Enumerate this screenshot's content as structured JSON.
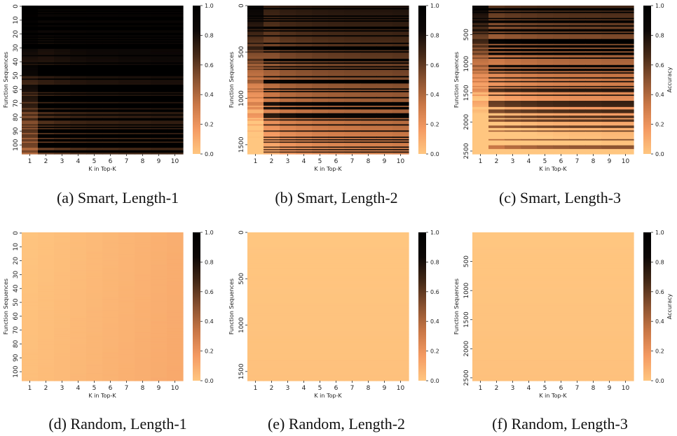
{
  "palette": {
    "low": "#ffc680",
    "high": "#000000",
    "stops": [
      "#ffc680",
      "#f49a62",
      "#c97746",
      "#8a5230",
      "#452917",
      "#0d0806",
      "#000000"
    ]
  },
  "chart_data": [
    {
      "type": "heatmap",
      "caption": "(a) Smart, Length-1",
      "xlabel": "K in Top-K",
      "ylabel": "Function Sequences",
      "x_categories": [
        "1",
        "2",
        "3",
        "4",
        "5",
        "6",
        "7",
        "8",
        "9",
        "10"
      ],
      "y_ticks": [
        "0",
        "10",
        "20",
        "30",
        "40",
        "50",
        "60",
        "70",
        "80",
        "90",
        "100"
      ],
      "y_range": [
        0,
        107
      ],
      "n_rows": 107,
      "colorbar": {
        "ticks": [
          "0.0",
          "0.2",
          "0.4",
          "0.6",
          "0.8",
          "1.0"
        ],
        "label": "",
        "range": [
          0,
          1
        ]
      },
      "column_mean_accuracy": [
        0.74,
        0.88,
        0.9,
        0.92,
        0.93,
        0.93,
        0.94,
        0.94,
        0.95,
        0.95
      ]
    },
    {
      "type": "heatmap",
      "caption": "(b) Smart, Length-2",
      "xlabel": "K in Top-K",
      "ylabel": "Function Sequences",
      "x_categories": [
        "1",
        "2",
        "3",
        "4",
        "5",
        "6",
        "7",
        "8",
        "9",
        "10"
      ],
      "y_ticks": [
        "0",
        "500",
        "1000",
        "1500"
      ],
      "y_range": [
        0,
        1600
      ],
      "n_rows": 1600,
      "colorbar": {
        "ticks": [
          "0.0",
          "0.2",
          "0.4",
          "0.6",
          "0.8",
          "1.0"
        ],
        "label": "",
        "range": [
          0,
          1
        ]
      },
      "column_mean_accuracy": [
        0.36,
        0.55,
        0.6,
        0.62,
        0.64,
        0.65,
        0.66,
        0.67,
        0.67,
        0.68
      ]
    },
    {
      "type": "heatmap",
      "caption": "(c) Smart, Length-3",
      "xlabel": "K in Top-K",
      "ylabel": "Function Sequences",
      "x_categories": [
        "1",
        "2",
        "3",
        "4",
        "5",
        "6",
        "7",
        "8",
        "9",
        "10"
      ],
      "y_ticks": [
        "500",
        "1000",
        "1500",
        "2000",
        "2500"
      ],
      "y_tick_values": [
        500,
        1000,
        1500,
        2000,
        2500
      ],
      "y_range": [
        0,
        2550
      ],
      "n_rows": 2550,
      "colorbar": {
        "ticks": [
          "0.0",
          "0.2",
          "0.4",
          "0.6",
          "0.8",
          "1.0"
        ],
        "label": "Accuracy",
        "range": [
          0,
          1
        ]
      },
      "column_mean_accuracy": [
        0.22,
        0.36,
        0.4,
        0.42,
        0.44,
        0.45,
        0.46,
        0.46,
        0.47,
        0.47
      ]
    },
    {
      "type": "heatmap",
      "caption": "(d) Random, Length-1",
      "xlabel": "K in Top-K",
      "ylabel": "Function Sequences",
      "x_categories": [
        "1",
        "2",
        "3",
        "4",
        "5",
        "6",
        "7",
        "8",
        "9",
        "10"
      ],
      "y_ticks": [
        "0",
        "10",
        "20",
        "30",
        "40",
        "50",
        "60",
        "70",
        "80",
        "90",
        "100"
      ],
      "y_range": [
        0,
        107
      ],
      "n_rows": 107,
      "colorbar": {
        "ticks": [
          "0.0",
          "0.2",
          "0.4",
          "0.6",
          "0.8",
          "1.0"
        ],
        "label": "",
        "range": [
          0,
          1
        ]
      },
      "column_mean_accuracy": [
        0.01,
        0.02,
        0.03,
        0.04,
        0.05,
        0.06,
        0.07,
        0.08,
        0.09,
        0.1
      ]
    },
    {
      "type": "heatmap",
      "caption": "(e) Random, Length-2",
      "xlabel": "K in Top-K",
      "ylabel": "Function Sequences",
      "x_categories": [
        "1",
        "2",
        "3",
        "4",
        "5",
        "6",
        "7",
        "8",
        "9",
        "10"
      ],
      "y_ticks": [
        "0",
        "500",
        "1000",
        "1500"
      ],
      "y_range": [
        0,
        1600
      ],
      "n_rows": 1600,
      "colorbar": {
        "ticks": [
          "0.0",
          "0.2",
          "0.4",
          "0.6",
          "0.8",
          "1.0"
        ],
        "label": "",
        "range": [
          0,
          1
        ]
      },
      "column_mean_accuracy": [
        0.0,
        0.0,
        0.0,
        0.0,
        0.0,
        0.0,
        0.0,
        0.0,
        0.0,
        0.0
      ]
    },
    {
      "type": "heatmap",
      "caption": "(f) Random, Length-3",
      "xlabel": "K in Top-K",
      "ylabel": "Function Sequences",
      "x_categories": [
        "1",
        "2",
        "3",
        "4",
        "5",
        "6",
        "7",
        "8",
        "9",
        "10"
      ],
      "y_ticks": [
        "500",
        "1000",
        "1500",
        "2000",
        "2500"
      ],
      "y_tick_values": [
        500,
        1000,
        1500,
        2000,
        2500
      ],
      "y_range": [
        0,
        2550
      ],
      "n_rows": 2550,
      "colorbar": {
        "ticks": [
          "0.0",
          "0.2",
          "0.4",
          "0.6",
          "0.8",
          "1.0"
        ],
        "label": "Accuracy",
        "range": [
          0,
          1
        ]
      },
      "column_mean_accuracy": [
        0.0,
        0.0,
        0.0,
        0.0,
        0.0,
        0.0,
        0.0,
        0.0,
        0.0,
        0.0
      ]
    }
  ]
}
